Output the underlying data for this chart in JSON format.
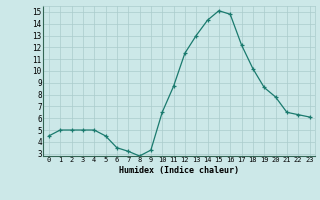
{
  "x": [
    0,
    1,
    2,
    3,
    4,
    5,
    6,
    7,
    8,
    9,
    10,
    11,
    12,
    13,
    14,
    15,
    16,
    17,
    18,
    19,
    20,
    21,
    22,
    23
  ],
  "y": [
    4.5,
    5.0,
    5.0,
    5.0,
    5.0,
    4.5,
    3.5,
    3.2,
    2.8,
    3.3,
    6.5,
    8.7,
    11.5,
    13.0,
    14.3,
    15.1,
    14.8,
    12.2,
    10.2,
    8.6,
    7.8,
    6.5,
    6.3,
    6.1
  ],
  "xlabel": "Humidex (Indice chaleur)",
  "ylim": [
    3,
    15
  ],
  "xlim": [
    0,
    23
  ],
  "yticks": [
    3,
    4,
    5,
    6,
    7,
    8,
    9,
    10,
    11,
    12,
    13,
    14,
    15
  ],
  "xticks": [
    0,
    1,
    2,
    3,
    4,
    5,
    6,
    7,
    8,
    9,
    10,
    11,
    12,
    13,
    14,
    15,
    16,
    17,
    18,
    19,
    20,
    21,
    22,
    23
  ],
  "line_color": "#1a7a6e",
  "marker": "+",
  "bg_color": "#cce8e8",
  "grid_color": "#aacccc",
  "axis_bottom_color": "#4a8a80"
}
